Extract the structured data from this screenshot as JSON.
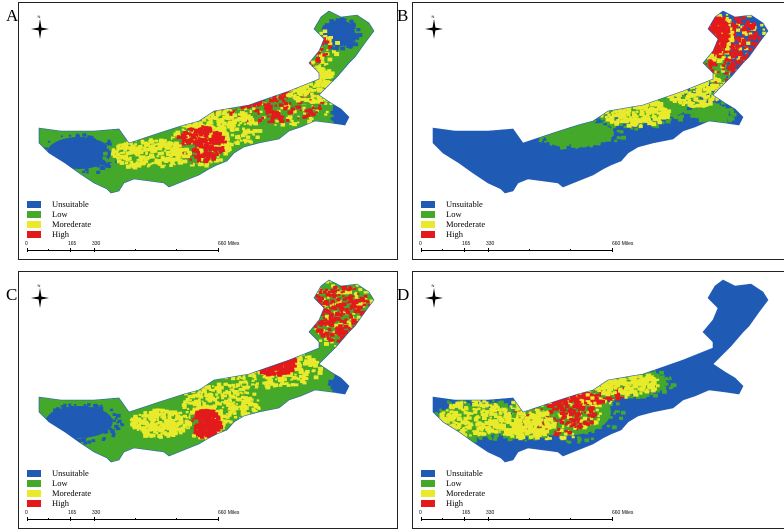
{
  "colors": {
    "unsuitable": "#1f5ab5",
    "low": "#44a82b",
    "moderate": "#e9ea2b",
    "high": "#e31a1c"
  },
  "legend": [
    {
      "label": "Unsuitable",
      "color": "#1f5ab5"
    },
    {
      "label": "Low",
      "color": "#44a82b"
    },
    {
      "label": "Morederate",
      "color": "#e9ea2b"
    },
    {
      "label": "High",
      "color": "#e31a1c"
    }
  ],
  "scale_bar": {
    "ticks": [
      "0",
      "165",
      "330",
      "660 Miles"
    ]
  },
  "north_arrow": {
    "label": "N",
    "icon": "north-arrow-icon"
  },
  "panels": [
    {
      "letter": "A",
      "base": "unsuitable",
      "mid": "low"
    },
    {
      "letter": "B",
      "base": "unsuitable",
      "mid": "low"
    },
    {
      "letter": "C",
      "base": "unsuitable",
      "mid": "low"
    },
    {
      "letter": "D",
      "base": "unsuitable",
      "mid": "low"
    }
  ]
}
